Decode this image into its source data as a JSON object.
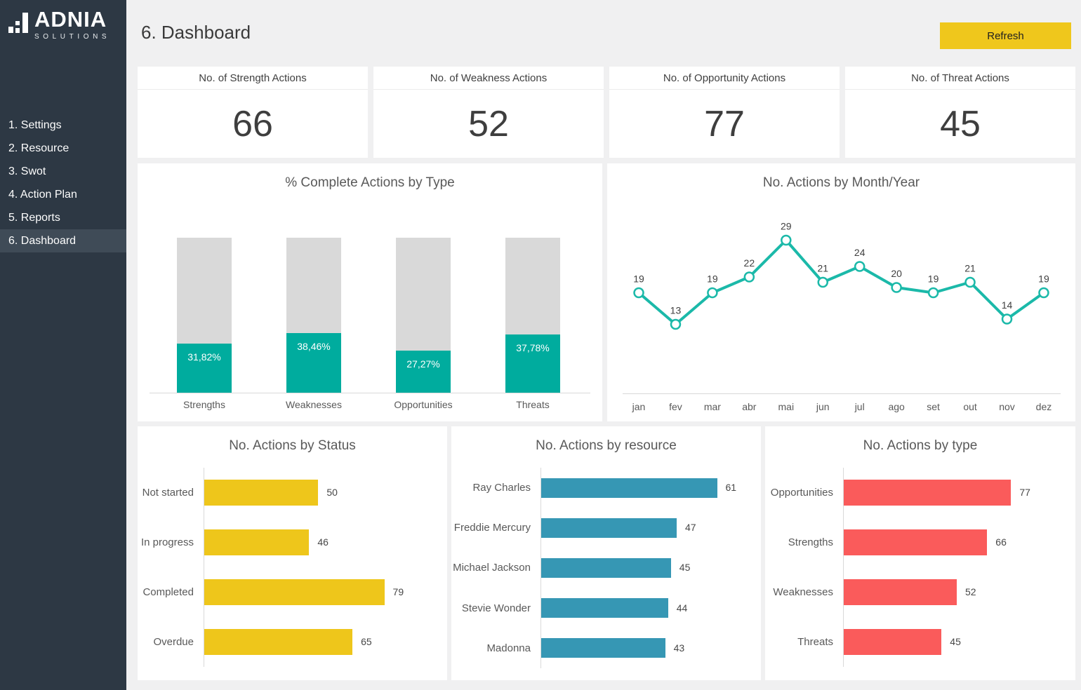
{
  "header": {
    "title": "6. Dashboard",
    "refresh_label": "Refresh"
  },
  "sidebar": {
    "logo": {
      "brand": "ADNIA",
      "tagline": "SOLUTIONS"
    },
    "items": [
      {
        "label": "1. Settings",
        "active": false
      },
      {
        "label": "2. Resource",
        "active": false
      },
      {
        "label": "3. Swot",
        "active": false
      },
      {
        "label": "4. Action Plan",
        "active": false
      },
      {
        "label": "5. Reports",
        "active": false
      },
      {
        "label": "6. Dashboard",
        "active": true
      }
    ]
  },
  "kpis": [
    {
      "title": "No. of Strength Actions",
      "value": "66"
    },
    {
      "title": "No. of Weakness Actions",
      "value": "52"
    },
    {
      "title": "No. of Opportunity Actions",
      "value": "77"
    },
    {
      "title": "No. of Threat Actions",
      "value": "45"
    }
  ],
  "colors": {
    "page_bg": "#F0F0F1",
    "panel_bg": "#FFFFFF",
    "sidebar_bg": "#2D3844",
    "sidebar_active": "#3F4B57",
    "button_yellow": "#EFC71C",
    "teal": "#00AC9E",
    "line_teal": "#1BB9A9",
    "track_gray": "#D9D9D9",
    "yellow": "#EEC61B",
    "blue": "#3697B4",
    "coral": "#FA5B5B"
  },
  "chart_data": [
    {
      "id": "complete-actions-by-type",
      "type": "bar",
      "subtype": "progress-column",
      "title": "% Complete Actions by Type",
      "categories": [
        "Strengths",
        "Weaknesses",
        "Opportunities",
        "Threats"
      ],
      "values": [
        31.82,
        38.46,
        27.27,
        37.78
      ],
      "labels": [
        "31,82%",
        "38,46%",
        "27,27%",
        "37,78%"
      ],
      "ylim": [
        0,
        100
      ],
      "color": "#00AC9E",
      "track_color": "#D9D9D9",
      "grid": false,
      "legend": false
    },
    {
      "id": "actions-by-month",
      "type": "line",
      "title": "No. Actions by Month/Year",
      "x": [
        "jan",
        "fev",
        "mar",
        "abr",
        "mai",
        "jun",
        "jul",
        "ago",
        "set",
        "out",
        "nov",
        "dez"
      ],
      "values": [
        19,
        13,
        19,
        22,
        29,
        21,
        24,
        20,
        19,
        21,
        14,
        19
      ],
      "ylim": [
        0,
        33
      ],
      "color": "#1BB9A9",
      "marker": "white-circle",
      "data_labels": true,
      "grid": false,
      "legend": false
    },
    {
      "id": "actions-by-status",
      "type": "bar",
      "orientation": "horizontal",
      "title": "No. Actions by Status",
      "categories": [
        "Not started",
        "In progress",
        "Completed",
        "Overdue"
      ],
      "values": [
        50,
        46,
        79,
        65
      ],
      "xlim": [
        0,
        105
      ],
      "color": "#EEC61B",
      "data_labels": true,
      "grid": false,
      "legend": false
    },
    {
      "id": "actions-by-resource",
      "type": "bar",
      "orientation": "horizontal",
      "title": "No. Actions by resource",
      "categories": [
        "Ray Charles",
        "Freddie Mercury",
        "Michael Jackson",
        "Stevie Wonder",
        "Madonna"
      ],
      "values": [
        61,
        47,
        45,
        44,
        43
      ],
      "xlim": [
        0,
        75
      ],
      "color": "#3697B4",
      "data_labels": true,
      "grid": false,
      "legend": false
    },
    {
      "id": "actions-by-type",
      "type": "bar",
      "orientation": "horizontal",
      "title": "No. Actions by type",
      "categories": [
        "Opportunities",
        "Strengths",
        "Weaknesses",
        "Threats"
      ],
      "values": [
        77,
        66,
        52,
        45
      ],
      "xlim": [
        0,
        105
      ],
      "color": "#FA5B5B",
      "data_labels": true,
      "grid": false,
      "legend": false
    }
  ]
}
